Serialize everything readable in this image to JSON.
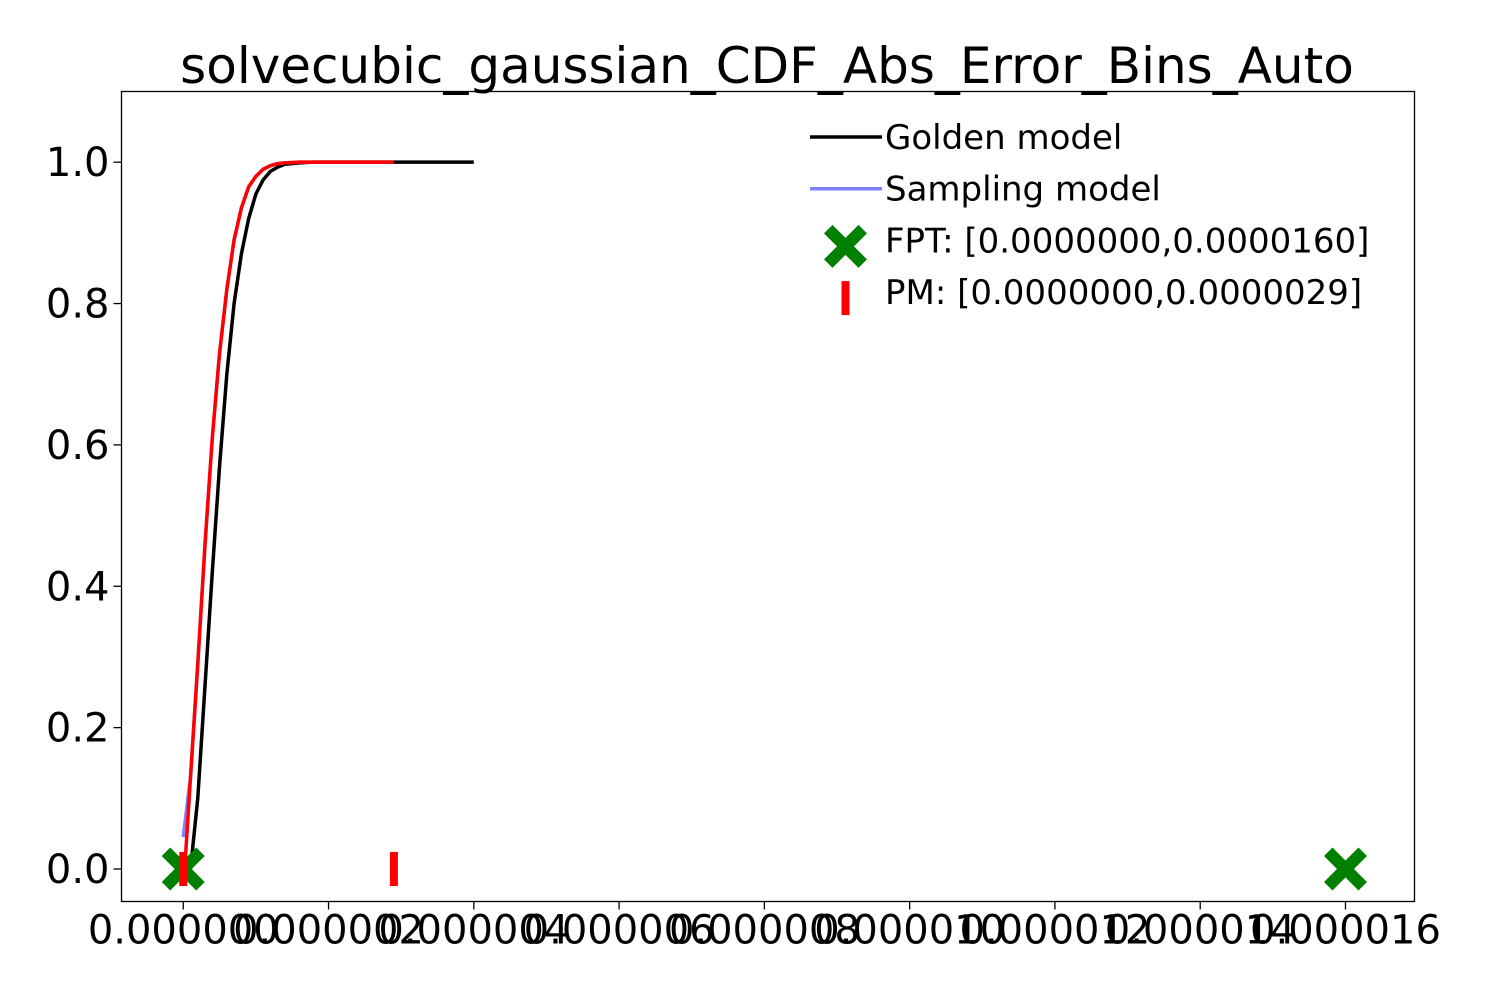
{
  "chart_data": {
    "type": "line",
    "title": "solvecubic_gaussian_CDF_Abs_Error_Bins_Auto",
    "xlabel": "",
    "ylabel": "",
    "xlim": [
      -8.5e-07,
      1.695e-05
    ],
    "ylim": [
      -0.046,
      1.1
    ],
    "xticks": [
      0,
      2e-06,
      4e-06,
      6e-06,
      8e-06,
      1e-05,
      1.2e-05,
      1.4e-05,
      1.6e-05
    ],
    "xtick_labels": [
      "0.000000",
      "0.000002",
      "0.000004",
      "0.000006",
      "0.000008",
      "0.000010",
      "0.000012",
      "0.000014",
      "0.000016"
    ],
    "yticks": [
      0.0,
      0.2,
      0.4,
      0.6,
      0.8,
      1.0
    ],
    "ytick_labels": [
      "0.0",
      "0.2",
      "0.4",
      "0.6",
      "0.8",
      "1.0"
    ],
    "legend_position": "top-right",
    "grid": false,
    "series": [
      {
        "name": "Golden model",
        "color": "#000000",
        "x": [
          1e-07,
          2e-07,
          3e-07,
          4e-07,
          5e-07,
          6e-07,
          7e-07,
          8e-07,
          9e-07,
          1e-06,
          1.1e-06,
          1.2e-06,
          1.3e-06,
          1.4e-06,
          1.6e-06,
          1.8e-06,
          2e-06,
          2.5e-06,
          3e-06,
          4e-06
        ],
        "y": [
          0.0,
          0.1,
          0.26,
          0.42,
          0.57,
          0.7,
          0.8,
          0.87,
          0.92,
          0.955,
          0.975,
          0.987,
          0.993,
          0.997,
          0.999,
          1.0,
          1.0,
          1.0,
          1.0,
          1.0
        ]
      },
      {
        "name": "Sampling model",
        "color": "#8080ff",
        "x": [
          0.0,
          1e-07,
          2e-07,
          3e-07,
          4e-07,
          5e-07,
          6e-07,
          7e-07,
          8e-07,
          9e-07,
          1e-06,
          1.1e-06,
          1.2e-06,
          1.3e-06,
          1.4e-06,
          1.6e-06,
          2e-06,
          2.9e-06
        ],
        "y": [
          0.045,
          0.13,
          0.29,
          0.46,
          0.61,
          0.73,
          0.82,
          0.89,
          0.935,
          0.965,
          0.98,
          0.99,
          0.995,
          0.998,
          0.999,
          1.0,
          1.0,
          1.0
        ]
      },
      {
        "name": "",
        "color": "#ff0000",
        "x": [
          0.0,
          2e-08,
          1e-07,
          2e-07,
          3e-07,
          4e-07,
          5e-07,
          6e-07,
          7e-07,
          8e-07,
          9e-07,
          1e-06,
          1.1e-06,
          1.2e-06,
          1.3e-06,
          1.4e-06,
          1.6e-06,
          2e-06,
          2.9e-06
        ],
        "y": [
          0.0,
          0.0,
          0.13,
          0.29,
          0.46,
          0.61,
          0.73,
          0.82,
          0.89,
          0.935,
          0.965,
          0.98,
          0.99,
          0.995,
          0.998,
          0.999,
          1.0,
          1.0,
          1.0
        ]
      }
    ],
    "markers": [
      {
        "name": "FPT: [0.0000000,0.0000160]",
        "shape": "x",
        "color": "#008000",
        "x": [
          0.0,
          1.6e-05
        ],
        "y": [
          0.0,
          0.0
        ]
      },
      {
        "name": "PM: [0.0000000,0.0000029]",
        "shape": "vline",
        "color": "#ff0000",
        "x": [
          0.0,
          2.9e-06
        ],
        "y": [
          0.0,
          0.0
        ]
      }
    ]
  }
}
